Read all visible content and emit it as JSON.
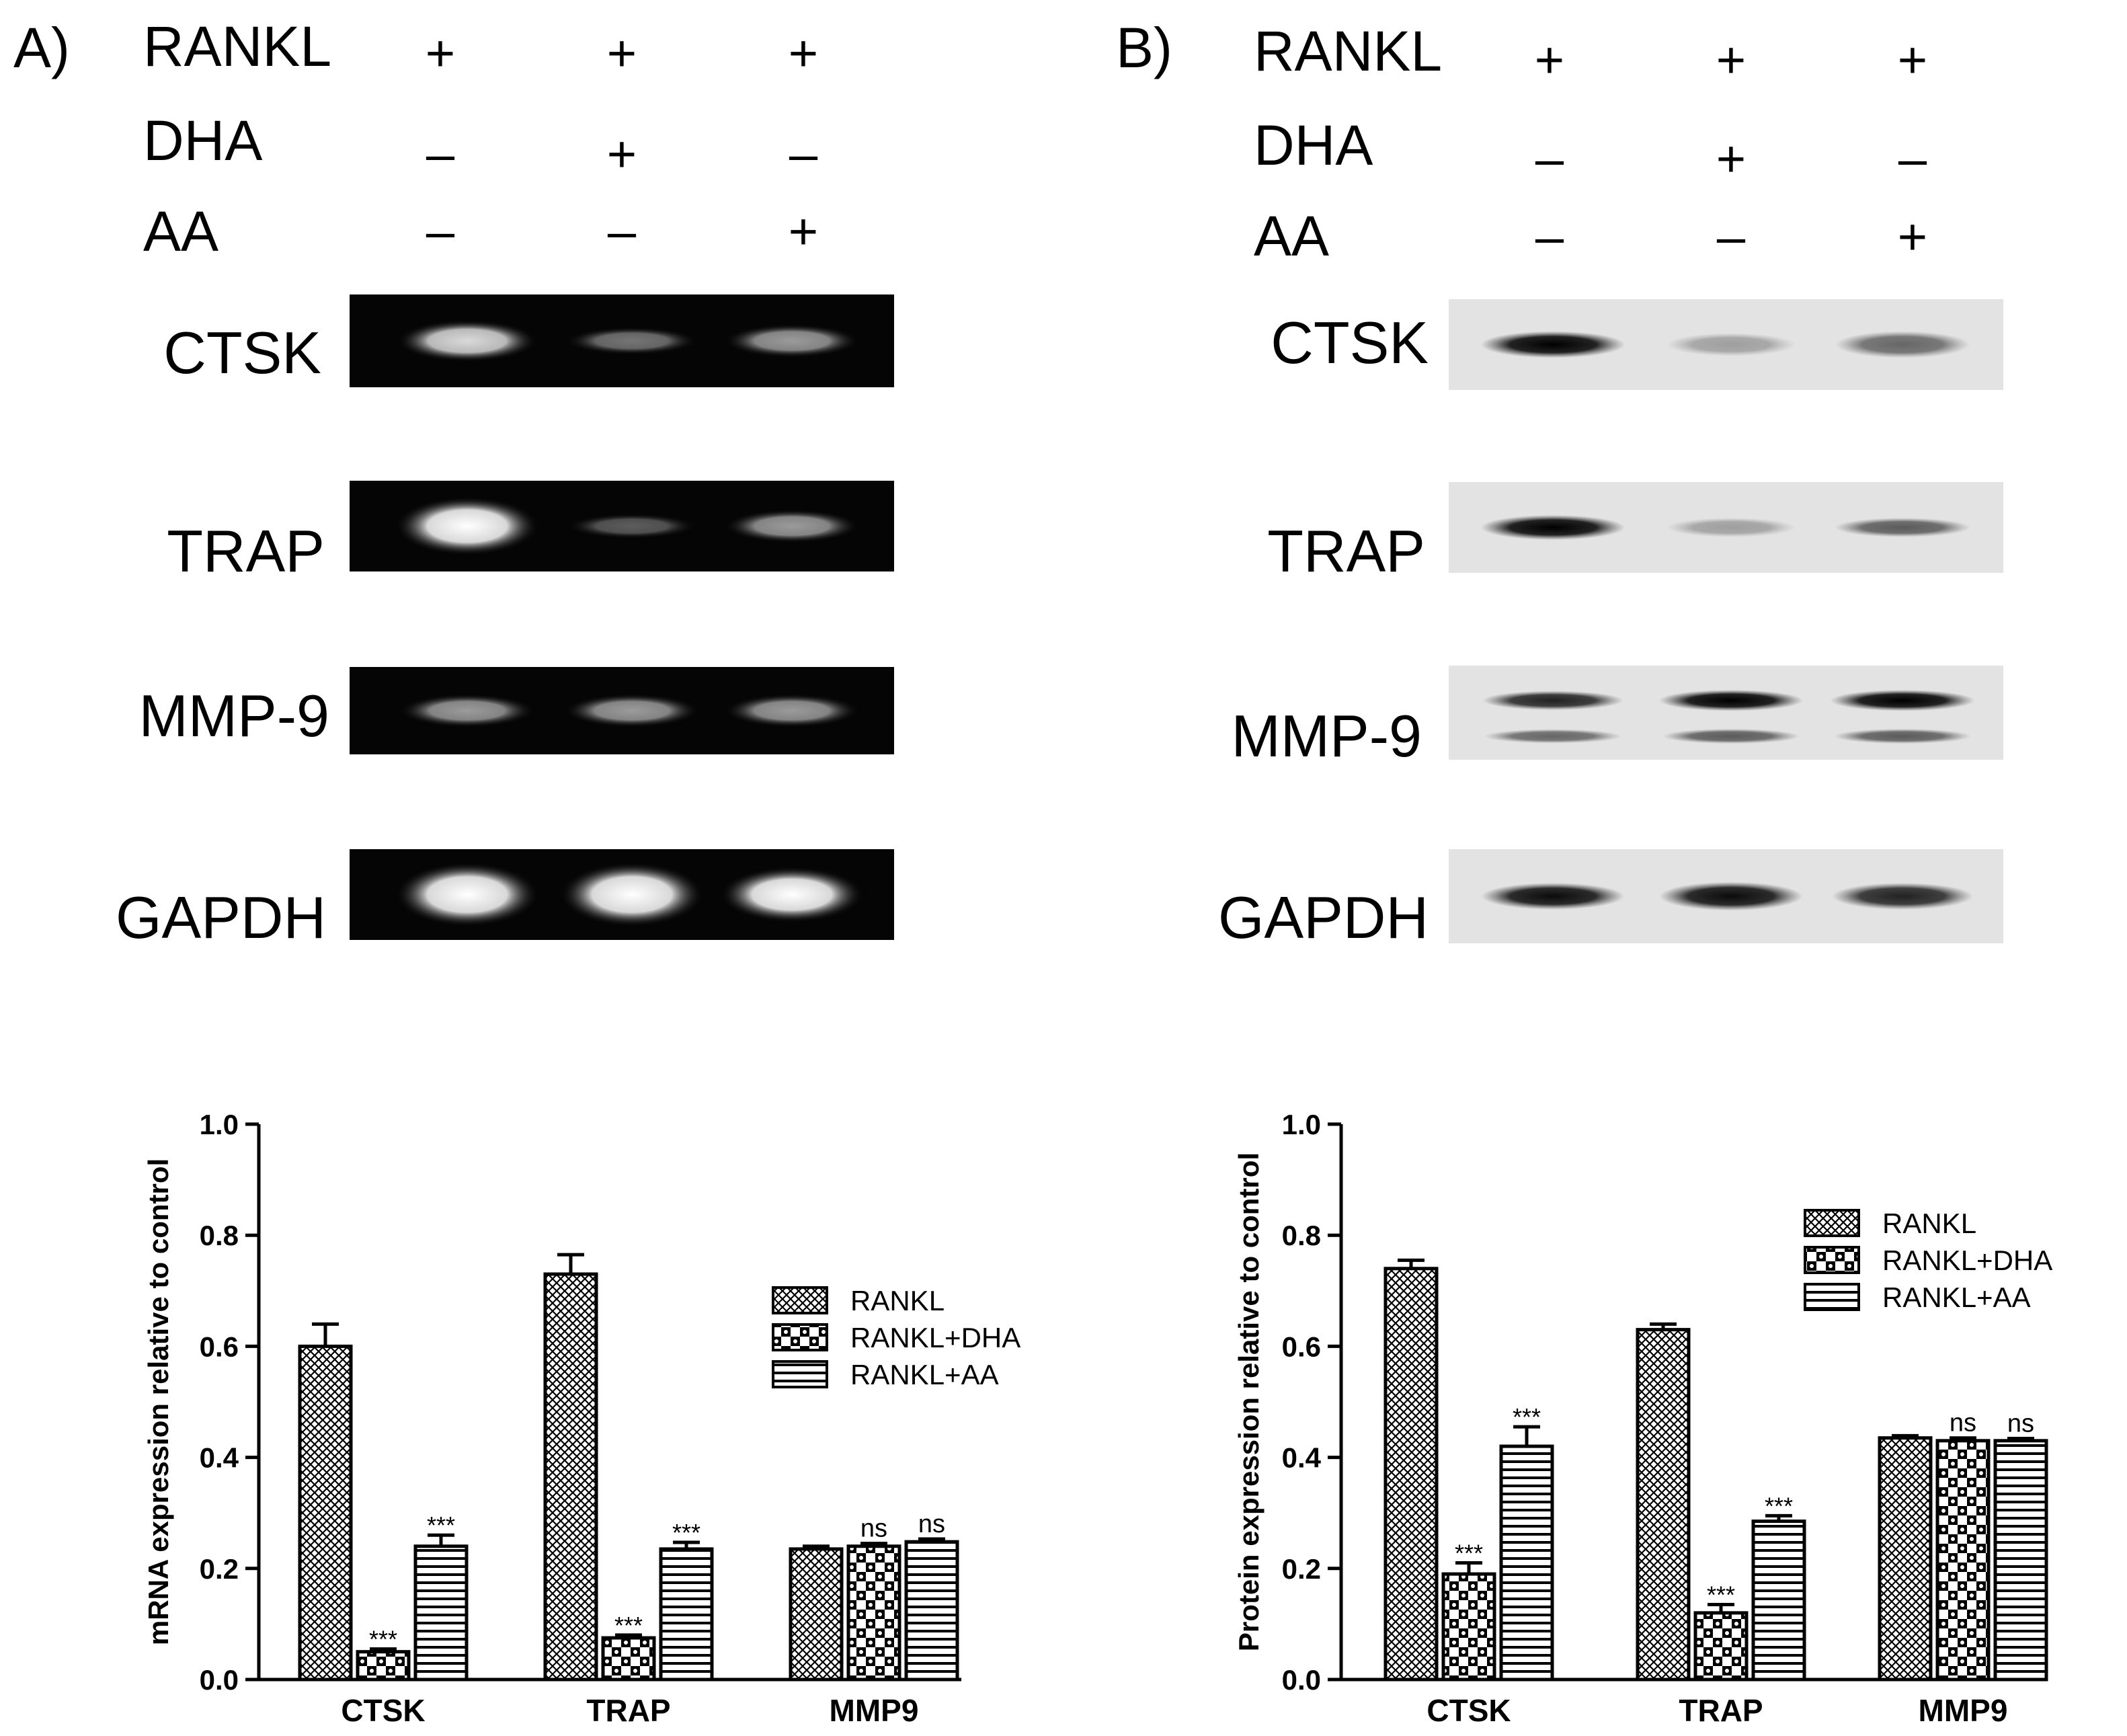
{
  "panel_a": {
    "label": "A)",
    "treatments": [
      {
        "name": "RANKL",
        "signs": [
          "+",
          "+",
          "+"
        ]
      },
      {
        "name": "DHA",
        "signs": [
          "–",
          "+",
          "–"
        ]
      },
      {
        "name": "AA",
        "signs": [
          "–",
          "–",
          "+"
        ]
      }
    ],
    "blots": [
      {
        "name": "CTSK",
        "style": "dark",
        "bands": [
          [
            0.85,
            0.6
          ],
          [
            0.45,
            0.35
          ],
          [
            0.6,
            0.45
          ]
        ]
      },
      {
        "name": "TRAP",
        "style": "dark",
        "bands": [
          [
            1.0,
            0.9
          ],
          [
            0.35,
            0.3
          ],
          [
            0.6,
            0.45
          ]
        ]
      },
      {
        "name": "MMP-9",
        "style": "dark",
        "bands": [
          [
            0.6,
            0.45
          ],
          [
            0.6,
            0.45
          ],
          [
            0.6,
            0.45
          ]
        ]
      },
      {
        "name": "GAPDH",
        "style": "dark",
        "bands": [
          [
            1.0,
            1.0
          ],
          [
            1.0,
            1.0
          ],
          [
            1.0,
            0.85
          ]
        ]
      }
    ]
  },
  "panel_b": {
    "label": "B)",
    "treatments": [
      {
        "name": "RANKL",
        "signs": [
          "+",
          "+",
          "+"
        ]
      },
      {
        "name": "DHA",
        "signs": [
          "–",
          "+",
          "–"
        ]
      },
      {
        "name": "AA",
        "signs": [
          "–",
          "–",
          "+"
        ]
      }
    ],
    "blots": [
      {
        "name": "CTSK",
        "style": "light",
        "bands": [
          [
            1.0,
            0.5
          ],
          [
            0.3,
            0.4
          ],
          [
            0.55,
            0.5
          ]
        ]
      },
      {
        "name": "TRAP",
        "style": "light",
        "bands": [
          [
            1.0,
            0.45
          ],
          [
            0.3,
            0.3
          ],
          [
            0.6,
            0.3
          ]
        ]
      },
      {
        "name": "MMP-9",
        "style": "light",
        "bands": [
          [
            0.85,
            0.3
          ],
          [
            1.0,
            0.35
          ],
          [
            1.0,
            0.35
          ]
        ],
        "second_bands": [
          [
            0.55,
            0.2
          ],
          [
            0.6,
            0.22
          ],
          [
            0.6,
            0.22
          ]
        ]
      },
      {
        "name": "GAPDH",
        "style": "light",
        "bands": [
          [
            0.95,
            0.5
          ],
          [
            0.95,
            0.55
          ],
          [
            0.85,
            0.5
          ]
        ]
      }
    ]
  },
  "colors": {
    "bar_stroke": "#000000",
    "pattern_fill": "#000000",
    "background": "#ffffff"
  },
  "chart_data": [
    {
      "type": "bar",
      "title": "",
      "xlabel": "",
      "ylabel": "mRNA expression relative to control",
      "ylim": [
        0,
        1.0
      ],
      "yticks": [
        "0.0",
        "0.2",
        "0.4",
        "0.6",
        "0.8",
        "1.0"
      ],
      "categories": [
        "CTSK",
        "TRAP",
        "MMP9"
      ],
      "legend_position": "right",
      "series": [
        {
          "name": "RANKL",
          "pattern": "grid",
          "values": [
            0.6,
            0.73,
            0.235
          ],
          "errors": [
            0.04,
            0.035,
            0.005
          ],
          "annotations": [
            "",
            "",
            ""
          ]
        },
        {
          "name": "RANKL+DHA",
          "pattern": "checker",
          "values": [
            0.05,
            0.075,
            0.24
          ],
          "errors": [
            0.005,
            0.005,
            0.005
          ],
          "annotations": [
            "***",
            "***",
            "ns"
          ]
        },
        {
          "name": "RANKL+AA",
          "pattern": "hlines",
          "values": [
            0.24,
            0.235,
            0.248
          ],
          "errors": [
            0.02,
            0.012,
            0.005
          ],
          "annotations": [
            "***",
            "***",
            "ns"
          ]
        }
      ]
    },
    {
      "type": "bar",
      "title": "",
      "xlabel": "",
      "ylabel": "Protein expression relative to control",
      "ylim": [
        0,
        1.0
      ],
      "yticks": [
        "0.0",
        "0.2",
        "0.4",
        "0.6",
        "0.8",
        "1.0"
      ],
      "categories": [
        "CTSK",
        "TRAP",
        "MMP9"
      ],
      "legend_position": "top-right",
      "series": [
        {
          "name": "RANKL",
          "pattern": "grid",
          "values": [
            0.74,
            0.63,
            0.435
          ],
          "errors": [
            0.015,
            0.01,
            0.004
          ],
          "annotations": [
            "",
            "",
            ""
          ]
        },
        {
          "name": "RANKL+DHA",
          "pattern": "checker",
          "values": [
            0.19,
            0.12,
            0.43
          ],
          "errors": [
            0.02,
            0.015,
            0.005
          ],
          "annotations": [
            "***",
            "***",
            "ns"
          ]
        },
        {
          "name": "RANKL+AA",
          "pattern": "hlines",
          "values": [
            0.42,
            0.285,
            0.43
          ],
          "errors": [
            0.035,
            0.01,
            0.004
          ],
          "annotations": [
            "***",
            "***",
            "ns"
          ]
        }
      ]
    }
  ]
}
